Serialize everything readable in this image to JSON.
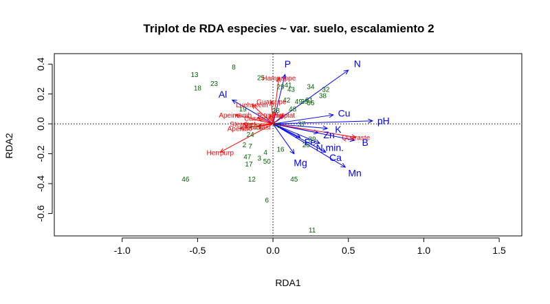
{
  "chart_data": {
    "type": "scatter",
    "title": "Triplot de RDA especies ~ var. suelo, escalamiento 2",
    "xlabel": "RDA1",
    "ylabel": "RDA2",
    "xlim": [
      -1.45,
      1.65
    ],
    "ylim": [
      -0.75,
      0.47
    ],
    "xticks": [
      -1.0,
      -0.5,
      0.0,
      0.5,
      1.0,
      1.5
    ],
    "xtick_labels": [
      "-1.0",
      "-0.5",
      "0.0",
      "0.5",
      "1.0",
      "1.5"
    ],
    "yticks": [
      -0.6,
      -0.4,
      -0.2,
      0.0,
      0.2,
      0.4
    ],
    "ytick_labels": [
      "-0.6",
      "-0.4",
      "-0.2",
      "0.0",
      "0.2",
      "0.4"
    ],
    "reference_lines": {
      "x": 0,
      "y": 0,
      "style": "dotted"
    },
    "colors": {
      "sites": "#006400",
      "species": "#ff0000",
      "environment": "#0000ff"
    },
    "sites": [
      {
        "label": "8",
        "x": -0.26,
        "y": 0.38
      },
      {
        "label": "13",
        "x": -0.52,
        "y": 0.33
      },
      {
        "label": "23",
        "x": -0.39,
        "y": 0.27
      },
      {
        "label": "18",
        "x": -0.5,
        "y": 0.24
      },
      {
        "label": "25",
        "x": -0.08,
        "y": 0.31
      },
      {
        "label": "29",
        "x": 0.05,
        "y": 0.25
      },
      {
        "label": "41",
        "x": 0.1,
        "y": 0.26
      },
      {
        "label": "43",
        "x": 0.12,
        "y": 0.23
      },
      {
        "label": "34",
        "x": 0.25,
        "y": 0.25
      },
      {
        "label": "32",
        "x": 0.35,
        "y": 0.23
      },
      {
        "label": "38",
        "x": 0.33,
        "y": 0.19
      },
      {
        "label": "42",
        "x": 0.09,
        "y": 0.16
      },
      {
        "label": "49",
        "x": 0.17,
        "y": 0.15
      },
      {
        "label": "35",
        "x": 0.21,
        "y": 0.15
      },
      {
        "label": "31",
        "x": 0.24,
        "y": 0.16
      },
      {
        "label": "36",
        "x": 0.25,
        "y": 0.14
      },
      {
        "label": "48",
        "x": 0.13,
        "y": 0.1
      },
      {
        "label": "28",
        "x": 0.02,
        "y": 0.09
      },
      {
        "label": "19",
        "x": -0.2,
        "y": 0.1
      },
      {
        "label": "37",
        "x": 0.19,
        "y": 0.0
      },
      {
        "label": "24",
        "x": -0.15,
        "y": -0.07
      },
      {
        "label": "39",
        "x": 0.26,
        "y": -0.1
      },
      {
        "label": "26",
        "x": 0.22,
        "y": -0.14
      },
      {
        "label": "2",
        "x": -0.19,
        "y": -0.14
      },
      {
        "label": "7",
        "x": -0.15,
        "y": -0.15
      },
      {
        "label": "16",
        "x": 0.05,
        "y": -0.17
      },
      {
        "label": "4",
        "x": -0.05,
        "y": -0.19
      },
      {
        "label": "47",
        "x": -0.17,
        "y": -0.22
      },
      {
        "label": "3",
        "x": -0.09,
        "y": -0.23
      },
      {
        "label": "50",
        "x": -0.04,
        "y": -0.25
      },
      {
        "label": "17",
        "x": -0.16,
        "y": -0.27
      },
      {
        "label": "46",
        "x": -0.58,
        "y": -0.37
      },
      {
        "label": "12",
        "x": -0.14,
        "y": -0.37
      },
      {
        "label": "45",
        "x": 0.14,
        "y": -0.37
      },
      {
        "label": "6",
        "x": -0.04,
        "y": -0.51
      },
      {
        "label": "11",
        "x": 0.26,
        "y": -0.71
      },
      {
        "label": "21",
        "x": -0.1,
        "y": -0.02
      },
      {
        "label": "22",
        "x": -0.16,
        "y": -0.01
      },
      {
        "label": "1",
        "x": 0.01,
        "y": 0.0
      },
      {
        "label": "5",
        "x": 0.04,
        "y": -0.01
      }
    ],
    "species": [
      {
        "label": "Hampappe",
        "x": 0.04,
        "y": 0.31
      },
      {
        "label": "Guatsupe",
        "x": -0.01,
        "y": 0.15
      },
      {
        "label": "Luehseem",
        "x": -0.14,
        "y": 0.13
      },
      {
        "label": "Apeimemb",
        "x": -0.25,
        "y": 0.06
      },
      {
        "label": "Sterapet",
        "x": -0.2,
        "y": 0.0
      },
      {
        "label": "Apeitibo",
        "x": -0.22,
        "y": -0.03
      },
      {
        "label": "Casearia",
        "x": -0.1,
        "y": 0.04
      },
      {
        "label": "Cordlasi",
        "x": -0.1,
        "y": -0.02
      },
      {
        "label": "Tetrpana",
        "x": -0.02,
        "y": 0.06
      },
      {
        "label": "Platplat",
        "x": 0.07,
        "y": 0.06
      },
      {
        "label": "Herrpurp",
        "x": -0.35,
        "y": -0.19
      },
      {
        "label": "Quaraste",
        "x": 0.55,
        "y": -0.09
      }
    ],
    "environment": [
      {
        "label": "N",
        "x": 0.5,
        "y": 0.36
      },
      {
        "label": "P",
        "x": 0.08,
        "y": 0.33
      },
      {
        "label": "Al",
        "x": -0.27,
        "y": 0.16
      },
      {
        "label": "Cu",
        "x": 0.4,
        "y": 0.06
      },
      {
        "label": "pH",
        "x": 0.66,
        "y": 0.02
      },
      {
        "label": "K",
        "x": 0.36,
        "y": -0.03
      },
      {
        "label": "Zn",
        "x": 0.3,
        "y": -0.06
      },
      {
        "label": "B",
        "x": 0.54,
        "y": -0.11
      },
      {
        "label": "Fe",
        "x": 0.18,
        "y": -0.09
      },
      {
        "label": "N.min.",
        "x": 0.31,
        "y": -0.13
      },
      {
        "label": "Ca",
        "x": 0.35,
        "y": -0.19
      },
      {
        "label": "Mg",
        "x": 0.14,
        "y": -0.2
      },
      {
        "label": "Mn",
        "x": 0.48,
        "y": -0.29
      }
    ]
  }
}
